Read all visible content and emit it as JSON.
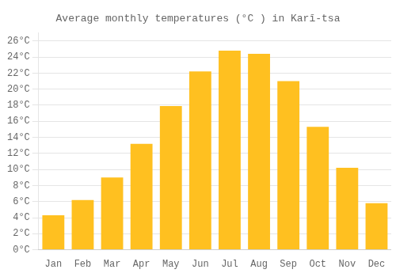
{
  "chart_data": {
    "type": "bar",
    "title": "Average monthly temperatures (°C ) in Karī-tsa",
    "categories": [
      "Jan",
      "Feb",
      "Mar",
      "Apr",
      "May",
      "Jun",
      "Jul",
      "Aug",
      "Sep",
      "Oct",
      "Nov",
      "Dec"
    ],
    "values": [
      4.3,
      6.2,
      9.0,
      13.2,
      17.9,
      22.2,
      24.8,
      24.4,
      21.0,
      15.3,
      10.2,
      5.8
    ],
    "color": "#FFC020",
    "ylim": [
      0,
      27
    ],
    "yticks": [
      {
        "value": 0,
        "label": "0°C"
      },
      {
        "value": 2,
        "label": "2°C"
      },
      {
        "value": 4,
        "label": "4°C"
      },
      {
        "value": 6,
        "label": "6°C"
      },
      {
        "value": 8,
        "label": "8°C"
      },
      {
        "value": 10,
        "label": "10°C"
      },
      {
        "value": 12,
        "label": "12°C"
      },
      {
        "value": 14,
        "label": "14°C"
      },
      {
        "value": 16,
        "label": "16°C"
      },
      {
        "value": 18,
        "label": "18°C"
      },
      {
        "value": 20,
        "label": "20°C"
      },
      {
        "value": 22,
        "label": "22°C"
      },
      {
        "value": 24,
        "label": "24°C"
      },
      {
        "value": 26,
        "label": "26°C"
      }
    ],
    "grid": true
  }
}
